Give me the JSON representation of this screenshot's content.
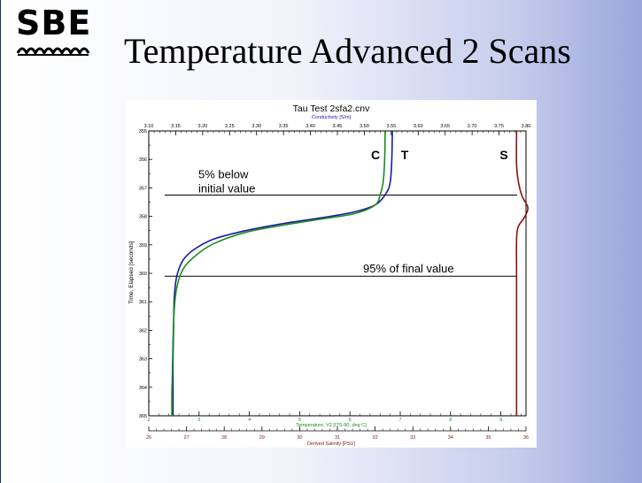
{
  "slide": {
    "title": "Temperature Advanced 2 Scans",
    "logo_text": "SBE"
  },
  "colors": {
    "conductivity": "#1a1aa6",
    "temperature": "#1a8c1a",
    "salinity": "#8b1010",
    "reference_line": "#000000"
  },
  "chart_data": {
    "type": "line",
    "title": "Tau Test 2sfa2.cnv",
    "y_axis": {
      "label": "Time, Elapsed [seconds]",
      "range": [
        355,
        365
      ],
      "ticks": [
        "355",
        "356",
        "357",
        "358",
        "359",
        "360",
        "361",
        "362",
        "363",
        "364",
        "365"
      ],
      "inverted": true
    },
    "top_axis": {
      "label": "Conductivity [S/m]",
      "range": [
        3.1,
        3.8
      ],
      "ticks": [
        "3.10",
        "3.15",
        "3.20",
        "3.25",
        "3.30",
        "3.35",
        "3.40",
        "3.45",
        "3.50",
        "3.55",
        "3.60",
        "3.65",
        "3.70",
        "3.75",
        "3.80"
      ]
    },
    "bottom_axis_1": {
      "label": "Temperature, V2 [ITS-90, deg C]",
      "range": [
        2,
        9.5
      ],
      "ticks": [
        "2",
        "3",
        "4",
        "5",
        "6",
        "7",
        "8",
        "9"
      ]
    },
    "bottom_axis_2": {
      "label": "Derived Salinity [PSU]",
      "range": [
        26,
        36
      ],
      "ticks": [
        "26",
        "27",
        "28",
        "29",
        "30",
        "31",
        "32",
        "33",
        "34",
        "35",
        "36"
      ]
    },
    "series": [
      {
        "name": "C",
        "axis": "top",
        "points": [
          [
            3.552,
            355.0
          ],
          [
            3.551,
            356.0
          ],
          [
            3.548,
            356.8
          ],
          [
            3.54,
            357.2
          ],
          [
            3.52,
            357.6
          ],
          [
            3.48,
            357.85
          ],
          [
            3.42,
            358.05
          ],
          [
            3.35,
            358.25
          ],
          [
            3.28,
            358.5
          ],
          [
            3.22,
            358.8
          ],
          [
            3.185,
            359.15
          ],
          [
            3.165,
            359.5
          ],
          [
            3.155,
            359.9
          ],
          [
            3.15,
            360.3
          ],
          [
            3.147,
            361.0
          ],
          [
            3.146,
            362.0
          ],
          [
            3.145,
            363.0
          ],
          [
            3.145,
            364.0
          ],
          [
            3.145,
            365.0
          ]
        ]
      },
      {
        "name": "T",
        "axis": "bottom1",
        "points": [
          [
            6.7,
            355.0
          ],
          [
            6.69,
            356.0
          ],
          [
            6.66,
            356.8
          ],
          [
            6.6,
            357.25
          ],
          [
            6.5,
            357.6
          ],
          [
            6.1,
            357.9
          ],
          [
            5.4,
            358.1
          ],
          [
            4.7,
            358.3
          ],
          [
            3.95,
            358.55
          ],
          [
            3.3,
            358.95
          ],
          [
            2.95,
            359.35
          ],
          [
            2.72,
            359.75
          ],
          [
            2.6,
            360.2
          ],
          [
            2.53,
            360.8
          ],
          [
            2.5,
            361.5
          ],
          [
            2.48,
            362.5
          ],
          [
            2.47,
            363.5
          ],
          [
            2.46,
            364.2
          ],
          [
            2.46,
            365.0
          ]
        ]
      },
      {
        "name": "S",
        "axis": "bottom2",
        "points": [
          [
            35.75,
            355.0
          ],
          [
            35.75,
            356.2
          ],
          [
            35.8,
            356.8
          ],
          [
            35.9,
            357.3
          ],
          [
            36.05,
            357.7
          ],
          [
            35.95,
            358.05
          ],
          [
            35.8,
            358.35
          ],
          [
            35.75,
            358.8
          ],
          [
            35.75,
            360.0
          ],
          [
            35.75,
            361.5
          ],
          [
            35.75,
            363.0
          ],
          [
            35.75,
            365.0
          ]
        ]
      }
    ],
    "reference_lines": [
      {
        "y": 357.25,
        "label": "5% below initial value",
        "label_lines": [
          "5% below",
          "initial value"
        ]
      },
      {
        "y": 360.1,
        "label": "95% of final value"
      }
    ]
  }
}
